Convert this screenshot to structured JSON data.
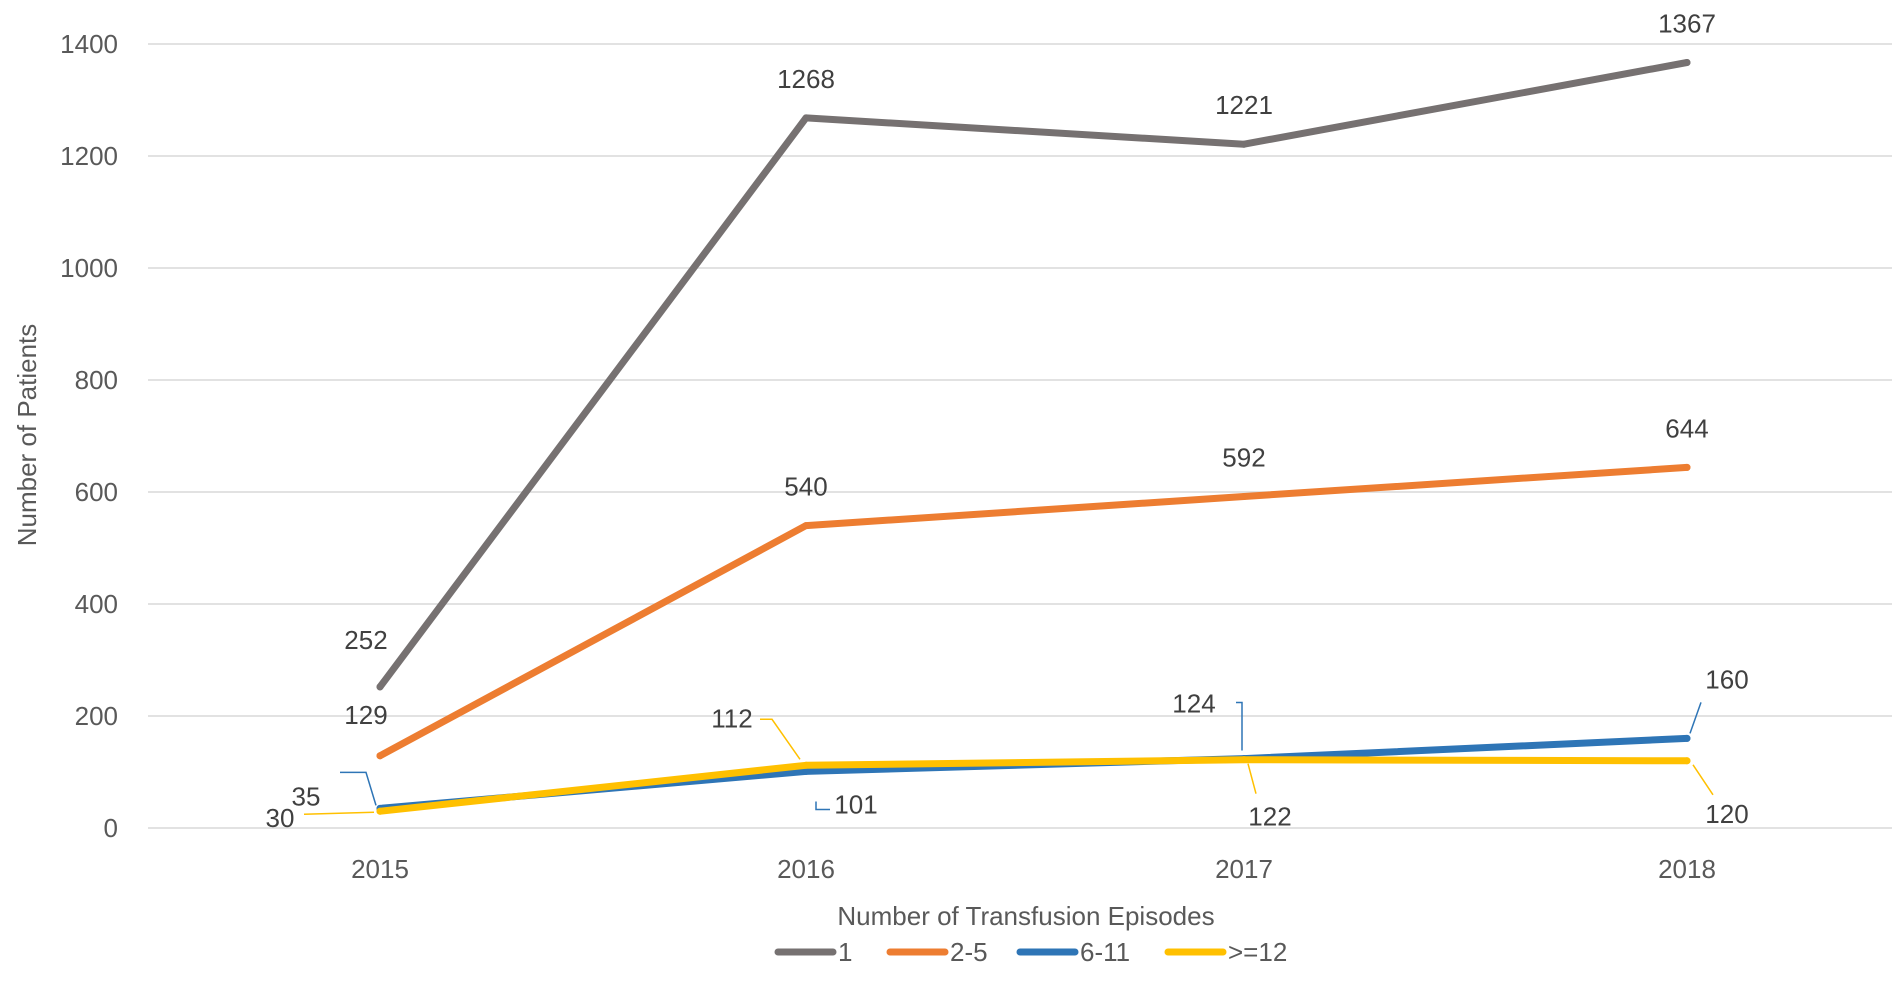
{
  "chart_data": {
    "type": "line",
    "title": "",
    "xlabel": "Number of Transfusion Episodes",
    "ylabel": "Number of Patients",
    "categories": [
      "2015",
      "2016",
      "2017",
      "2018"
    ],
    "ylim": [
      0,
      1400
    ],
    "yticks": [
      0,
      200,
      400,
      600,
      800,
      1000,
      1200,
      1400
    ],
    "grid": true,
    "legend_position": "bottom",
    "series": [
      {
        "name": "1",
        "color": "#767171",
        "values": [
          252,
          1268,
          1221,
          1367
        ]
      },
      {
        "name": "2-5",
        "color": "#ED7D31",
        "values": [
          129,
          540,
          592,
          644
        ]
      },
      {
        "name": "6-11",
        "color": "#2E75B6",
        "values": [
          35,
          101,
          124,
          160
        ]
      },
      {
        "name": ">=12",
        "color": "#FFC000",
        "values": [
          30,
          112,
          122,
          120
        ]
      }
    ]
  }
}
